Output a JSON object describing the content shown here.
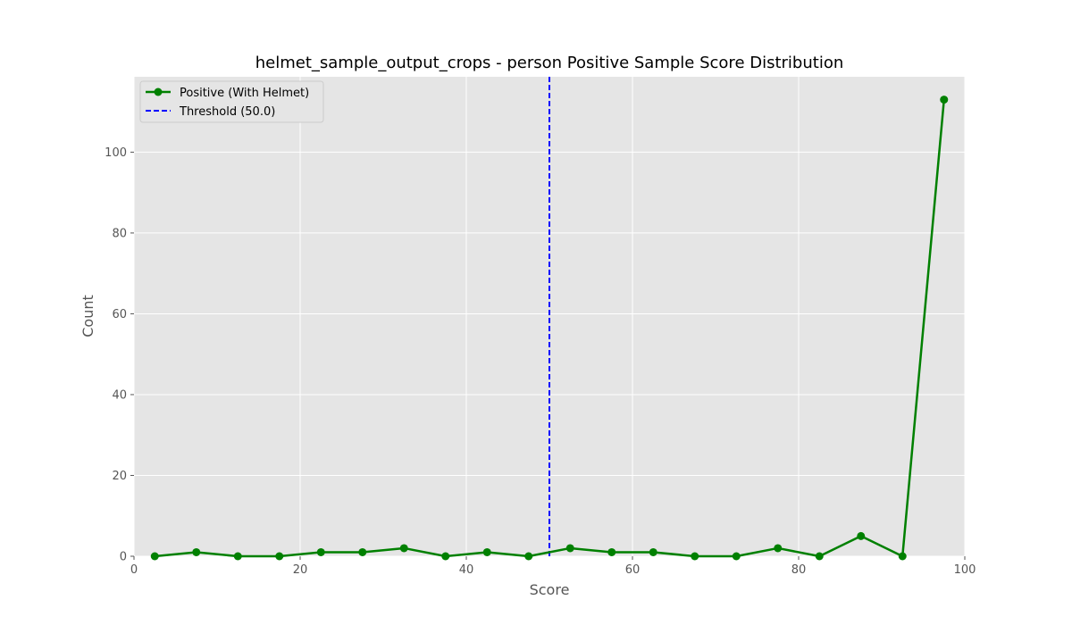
{
  "chart_data": {
    "type": "line",
    "title": "helmet_sample_output_crops - person Positive Sample Score Distribution",
    "xlabel": "Score",
    "ylabel": "Count",
    "xlim": [
      0,
      100
    ],
    "ylim": [
      0,
      118.65
    ],
    "xticks": [
      0,
      20,
      40,
      60,
      80,
      100
    ],
    "yticks": [
      0,
      20,
      40,
      60,
      80,
      100
    ],
    "grid": true,
    "legend_position": "upper-left",
    "series": [
      {
        "name": "Positive (With Helmet)",
        "color": "#008000",
        "marker": "circle",
        "x": [
          2.5,
          7.5,
          12.5,
          17.5,
          22.5,
          27.5,
          32.5,
          37.5,
          42.5,
          47.5,
          52.5,
          57.5,
          62.5,
          67.5,
          72.5,
          77.5,
          82.5,
          87.5,
          92.5,
          97.5
        ],
        "y": [
          0,
          1,
          0,
          0,
          1,
          1,
          2,
          0,
          1,
          0,
          2,
          1,
          1,
          0,
          0,
          2,
          0,
          5,
          0,
          113
        ]
      }
    ],
    "threshold": {
      "name": "Threshold (50.0)",
      "value": 50.0,
      "color": "#0000ff",
      "style": "dashed"
    }
  }
}
